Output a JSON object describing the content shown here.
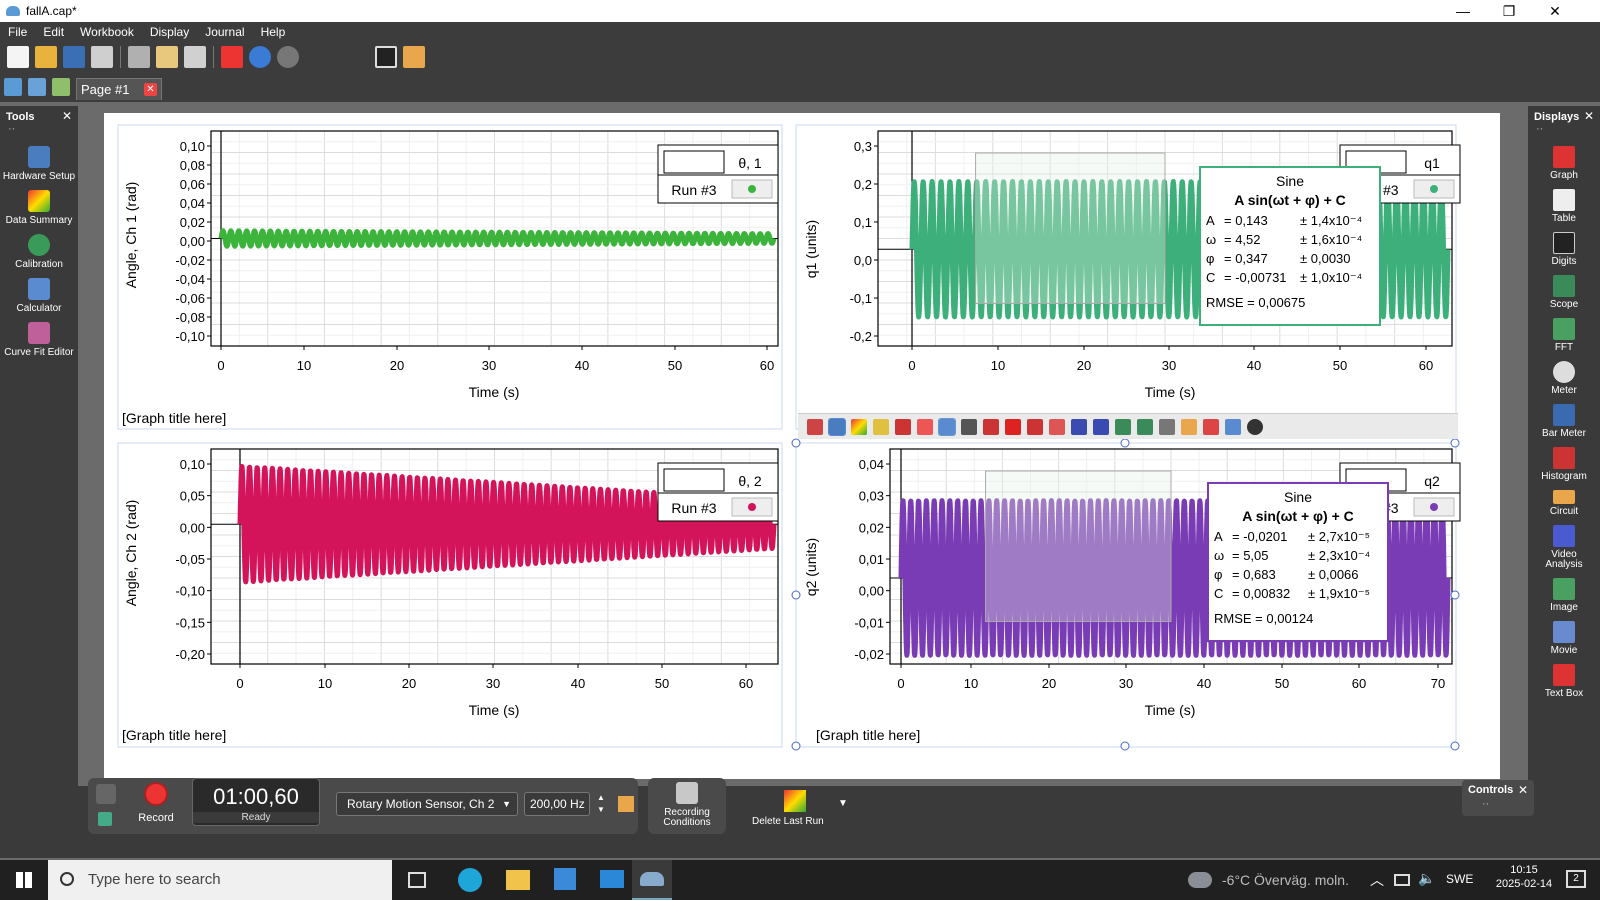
{
  "window": {
    "title": "fallA.cap*",
    "minimize": "—",
    "maximize": "❐",
    "close": "✕"
  },
  "menu": [
    "File",
    "Edit",
    "Workbook",
    "Display",
    "Journal",
    "Help"
  ],
  "tab": {
    "label": "Page #1",
    "close": "✕"
  },
  "tools": {
    "title": "Tools",
    "close": "✕",
    "dots": "··",
    "items": [
      "Hardware Setup",
      "Data Summary",
      "Calibration",
      "Calculator",
      "Curve Fit Editor"
    ]
  },
  "displays": {
    "title": "Displays",
    "close": "✕",
    "dots": "··",
    "items": [
      "Graph",
      "Table",
      "Digits",
      "Scope",
      "FFT",
      "Meter",
      "Bar Meter",
      "Histogram",
      "Circuit",
      "Video Analysis",
      "Image",
      "Movie",
      "Text Box"
    ]
  },
  "graph1": {
    "xlabel": "Time (s)",
    "ylabel": "Angle, Ch 1 (rad)",
    "title": "[Graph title here]",
    "legend_series": "θ, 1",
    "legend_run": "Run #3",
    "color": "#3cb43c",
    "yticks": [
      "0,10",
      "0,08",
      "0,06",
      "0,04",
      "0,02",
      "0,00",
      "-0,02",
      "-0,04",
      "-0,06",
      "-0,08",
      "-0,10"
    ],
    "xticks": [
      "0",
      "10",
      "20",
      "30",
      "40",
      "50",
      "60"
    ]
  },
  "graph2": {
    "xlabel": "Time (s)",
    "ylabel": "q1 (units)",
    "title": "",
    "legend_series": "q1",
    "legend_run": "Run #3",
    "color": "#3caf7a",
    "yticks": [
      "0,3",
      "0,2",
      "0,1",
      "0,0",
      "-0,1",
      "-0,2"
    ],
    "xticks": [
      "0",
      "10",
      "20",
      "30",
      "40",
      "50",
      "60"
    ],
    "fit": {
      "name": "Sine",
      "formula": "A sin(ωt + φ) + C",
      "rows": [
        [
          "A",
          "= 0,143",
          "± 1,4x10⁻⁴"
        ],
        [
          "ω",
          "= 4,52",
          "± 1,6x10⁻⁴"
        ],
        [
          "φ",
          "= 0,347",
          "± 0,0030"
        ],
        [
          "C",
          "= -0,00731",
          "± 1,0x10⁻⁴"
        ]
      ],
      "rmse": "RMSE = 0,00675"
    }
  },
  "graph3": {
    "xlabel": "Time (s)",
    "ylabel": "Angle, Ch 2 (rad)",
    "title": "[Graph title here]",
    "legend_series": "θ, 2",
    "legend_run": "Run #3",
    "color": "#d4145a",
    "yticks": [
      "0,10",
      "0,05",
      "0,00",
      "-0,05",
      "-0,10",
      "-0,15",
      "-0,20"
    ],
    "xticks": [
      "0",
      "10",
      "20",
      "30",
      "40",
      "50",
      "60"
    ]
  },
  "graph4": {
    "xlabel": "Time (s)",
    "ylabel": "q2 (units)",
    "title": "[Graph title here]",
    "legend_series": "q2",
    "legend_run": "Run #3",
    "color": "#7a3cb4",
    "yticks": [
      "0,04",
      "0,03",
      "0,02",
      "0,01",
      "0,00",
      "-0,01",
      "-0,02"
    ],
    "xticks": [
      "0",
      "10",
      "20",
      "30",
      "40",
      "50",
      "60",
      "70"
    ],
    "fit": {
      "name": "Sine",
      "formula": "A sin(ωt + φ) + C",
      "rows": [
        [
          "A",
          "= -0,0201",
          "± 2,7x10⁻⁵"
        ],
        [
          "ω",
          "= 5,05",
          "± 2,3x10⁻⁴"
        ],
        [
          "φ",
          "= 0,683",
          "± 0,0066"
        ],
        [
          "C",
          "= 0,00832",
          "± 1,9x10⁻⁵"
        ]
      ],
      "rmse": "RMSE = 0,00124"
    }
  },
  "controls": {
    "title": "Controls",
    "close": "✕",
    "dots": "··",
    "record": "Record",
    "time": "01:00,60",
    "status": "Ready",
    "sensor": "Rotary Motion Sensor, Ch 2",
    "rate": "200,00 Hz",
    "recording_conditions": "Recording Conditions",
    "delete_last_run": "Delete Last Run"
  },
  "taskbar": {
    "search": "Type here to search",
    "weather": "-6°C  Överväg. moln.",
    "lang": "SWE",
    "time": "10:15",
    "date": "2025-02-14",
    "notif": "2"
  }
}
